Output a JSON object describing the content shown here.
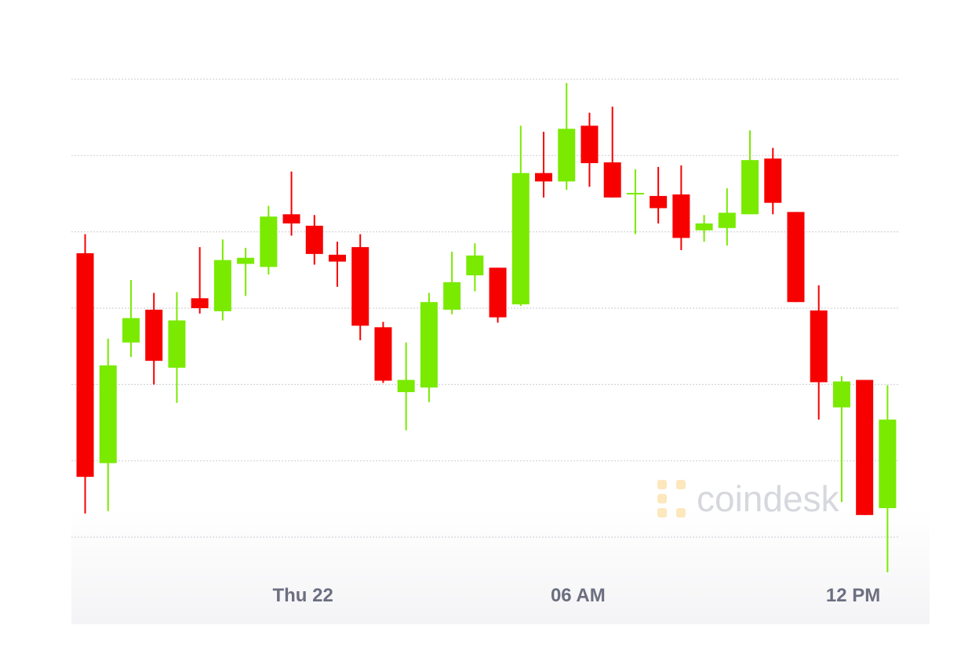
{
  "chart_data": {
    "type": "candlestick",
    "watermark": "coindesk",
    "x": [
      0,
      1,
      2,
      3,
      4,
      5,
      6,
      7,
      8,
      9,
      10,
      11,
      12,
      13,
      14,
      15,
      16,
      17,
      18,
      19,
      20,
      21,
      22,
      23,
      24,
      25,
      26,
      27,
      28,
      29,
      30,
      31,
      32,
      33,
      34,
      35
    ],
    "open": [
      3.72,
      0.97,
      2.55,
      2.98,
      2.22,
      3.13,
      2.96,
      3.58,
      3.54,
      4.23,
      4.08,
      3.7,
      3.8,
      2.75,
      1.9,
      1.96,
      2.98,
      3.43,
      3.53,
      3.05,
      4.77,
      4.66,
      5.39,
      4.91,
      4.5,
      4.47,
      4.49,
      4.02,
      4.05,
      4.23,
      4.96,
      4.26,
      2.97,
      1.7,
      2.06,
      0.38
    ],
    "high": [
      3.97,
      2.6,
      3.37,
      3.2,
      3.21,
      3.8,
      3.9,
      3.79,
      4.34,
      4.79,
      4.22,
      3.87,
      3.97,
      2.82,
      2.55,
      3.2,
      3.74,
      3.85,
      3.53,
      5.39,
      5.31,
      5.95,
      5.56,
      5.64,
      4.82,
      4.85,
      4.87,
      4.22,
      4.57,
      5.33,
      5.1,
      4.26,
      3.3,
      2.11,
      2.06,
      1.99
    ],
    "low": [
      0.31,
      0.34,
      2.36,
      2.0,
      1.76,
      2.93,
      2.84,
      3.16,
      3.44,
      3.95,
      3.57,
      3.28,
      2.58,
      2.02,
      1.4,
      1.77,
      2.92,
      3.22,
      2.81,
      3.03,
      4.45,
      4.55,
      4.59,
      4.45,
      3.97,
      4.11,
      3.76,
      3.87,
      3.82,
      4.23,
      4.23,
      3.08,
      1.54,
      0.46,
      0.29,
      -0.46
    ],
    "close": [
      0.79,
      2.25,
      2.87,
      2.31,
      2.84,
      3.0,
      3.63,
      3.66,
      4.2,
      4.11,
      3.71,
      3.61,
      2.77,
      2.05,
      2.06,
      3.08,
      3.34,
      3.69,
      2.88,
      4.77,
      4.66,
      5.35,
      4.9,
      4.45,
      4.51,
      4.31,
      3.92,
      4.11,
      4.25,
      4.94,
      4.38,
      3.08,
      2.03,
      2.04,
      0.29,
      1.54
    ],
    "up_color": "#7aea00",
    "down_color": "#f70000",
    "xlim": [
      -0.6,
      35.5
    ],
    "xticks": [
      {
        "value": 9.5,
        "label": "Thu 22"
      },
      {
        "value": 21.5,
        "label": "06 AM"
      },
      {
        "value": 33.5,
        "label": "12 PM"
      }
    ],
    "ylim": [
      -0.5,
      6.2
    ],
    "yticks": [
      0,
      1,
      2,
      3,
      4,
      5,
      6
    ],
    "grid": true
  }
}
